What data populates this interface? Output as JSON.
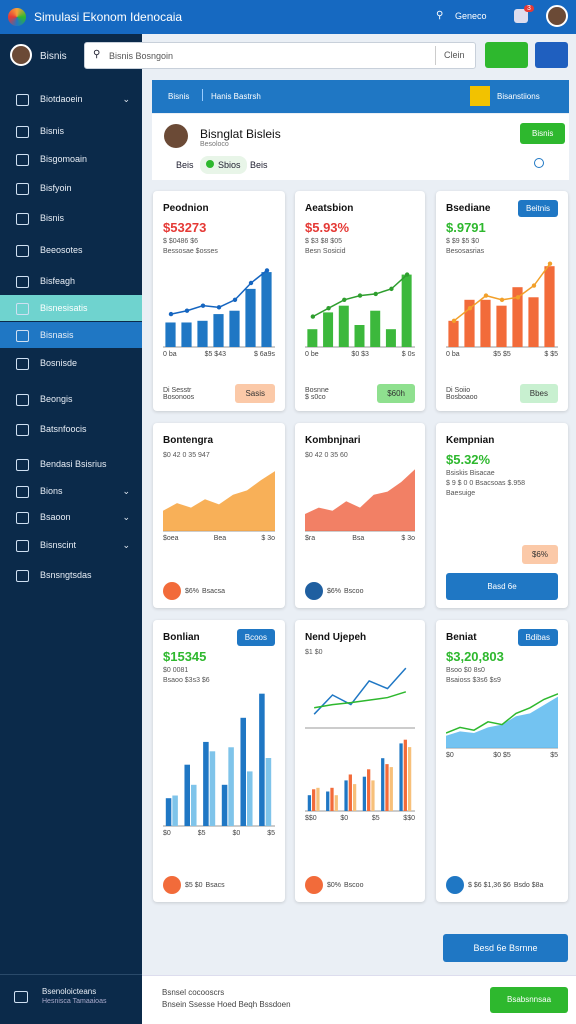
{
  "app": {
    "title": "Simulasi Ekonom Idenocaia",
    "search_label": "Geneco",
    "badge": "3"
  },
  "sidebar": {
    "user": "Bisnis",
    "items": [
      {
        "label": "Biotdaoein",
        "expandable": true
      },
      {
        "label": "Bisnis"
      },
      {
        "label": "Bisgomoain"
      },
      {
        "label": "Bisfyoin"
      },
      {
        "label": "Bisnis"
      },
      {
        "label": "Beeosotes"
      },
      {
        "label": "Bisfeagh"
      },
      {
        "label": "Bisnesisatis"
      },
      {
        "label": "Bisnasis"
      },
      {
        "label": "Bosnisde"
      },
      {
        "label": "Beongis"
      },
      {
        "label": "Batsnfoocis"
      },
      {
        "label": "Bendasi Bsisrius"
      },
      {
        "label": "Bions",
        "expandable": true
      },
      {
        "label": "Bsaoon",
        "expandable": true
      },
      {
        "label": "Bisnscint",
        "expandable": true
      },
      {
        "label": "Bsnsngtsdas"
      }
    ],
    "footer": [
      "Bsenoloicteans",
      "Hesnisca Tamaaioas"
    ]
  },
  "toolbar": {
    "search": "Bisnis Bosngoin",
    "clear": "Clein"
  },
  "banner": {
    "left": "Bisnis",
    "tab": "Hanis Bastrsh",
    "user": "Bisanstiions"
  },
  "profile": {
    "name": "Bisnglat Bisleis",
    "subtitle": "Besoloco",
    "button": "Bisnis",
    "tabs": [
      "Beis",
      "Sbios",
      "Beis"
    ]
  },
  "cards": [
    {
      "title": "Peodnion",
      "value": "$53273",
      "value_color": "#e53935",
      "lines": [
        "$ $0486 $6",
        "Bessosae $osses"
      ],
      "charts": [
        {
          "type": "barline",
          "ylim": [
            0,
            100
          ],
          "series": [
            {
              "kind": "bar",
              "color": "#1f77c4",
              "values": [
                28,
                28,
                30,
                38,
                42,
                68,
                88
              ]
            },
            {
              "kind": "line",
              "color": "#1565c0",
              "values": [
                38,
                42,
                48,
                46,
                55,
                75,
                90
              ]
            }
          ]
        }
      ],
      "xlabels": [
        "0 ba",
        "$5 $43",
        "$ 6a9s"
      ],
      "footer": [
        "Di Sesstr",
        "Bosonoos"
      ],
      "badge": "Sasis",
      "badge_color": "#fbc9a8"
    },
    {
      "title": "Aeatsbion",
      "value": "$5.93%",
      "value_color": "#e53935",
      "lines": [
        "$ $3 $8 $05",
        "Besn Sosicid"
      ],
      "charts": [
        {
          "type": "barline",
          "ylim": [
            0,
            100
          ],
          "series": [
            {
              "kind": "bar",
              "color": "#3cb83c",
              "values": [
                20,
                40,
                48,
                25,
                42,
                20,
                85
              ]
            },
            {
              "kind": "line",
              "color": "#2e9e2e",
              "values": [
                35,
                45,
                55,
                60,
                62,
                68,
                85
              ]
            }
          ]
        }
      ],
      "xlabels": [
        "0 be",
        "$0 $3",
        "$ 0s"
      ],
      "footer": [
        "Bosnne",
        "$ s0co"
      ],
      "badge": "$60h",
      "badge_color": "#8fe08f"
    },
    {
      "title": "Bsediane",
      "button": "Beitnis",
      "value": "$.9791",
      "value_color": "#2eb82e",
      "lines": [
        "$ $9 $5 $0",
        "Besosasrias"
      ],
      "charts": [
        {
          "type": "barline",
          "ylim": [
            0,
            100
          ],
          "series": [
            {
              "kind": "bar",
              "color": "#f26b3a",
              "values": [
                30,
                55,
                55,
                48,
                70,
                58,
                95
              ]
            },
            {
              "kind": "line",
              "color": "#f2a02a",
              "values": [
                30,
                45,
                60,
                55,
                58,
                72,
                98
              ]
            }
          ]
        }
      ],
      "xlabels": [
        "0 ba",
        "$5 $5",
        "$ $5"
      ],
      "footer": [
        "Di Soiio",
        "Bosboaoo"
      ],
      "badge": "Bbes",
      "badge_color": "#c8f0d0"
    },
    {
      "title": "Bontengra",
      "lines": [
        "$0 42 0 35 947"
      ],
      "charts": [
        {
          "type": "area",
          "ylim": [
            0,
            100
          ],
          "series": [
            {
              "kind": "area",
              "color": "#f7a23b",
              "values": [
                30,
                42,
                35,
                48,
                40,
                55,
                62,
                78,
                92
              ]
            }
          ]
        }
      ],
      "xlabels": [
        "$oea",
        "Bea",
        "$ 3o"
      ],
      "footer": [
        "$6%",
        "Bsacsa"
      ],
      "circle_color": "#f26b3a"
    },
    {
      "title": "Kombnjnari",
      "lines": [
        "$0 42 0 35 60"
      ],
      "charts": [
        {
          "type": "area",
          "ylim": [
            0,
            100
          ],
          "series": [
            {
              "kind": "area",
              "color": "#f06a4a",
              "values": [
                25,
                35,
                30,
                45,
                35,
                55,
                60,
                75,
                95
              ]
            }
          ]
        }
      ],
      "xlabels": [
        "$ra",
        "Bsa",
        "$ 3o"
      ],
      "footer": [
        "$6%",
        "Bscoo"
      ],
      "circle_color": "#1f5fa0"
    },
    {
      "title": "Kempnian",
      "value": "$5.32%",
      "value_color": "#2eb82e",
      "lines": [
        "Bsiskis Bisacae",
        "$ 9 $ 0 0 Bsacsoas $.958",
        "Baesuige"
      ],
      "charts": [],
      "xlabels": [],
      "footer": [],
      "badge": "$6%",
      "badge_color": "#fbc9a8",
      "action": "Basd 6e"
    },
    {
      "title": "Bonlian",
      "button": "Bcoos",
      "value": "$15345",
      "value_color": "#2eb82e",
      "lines": [
        "$0 0081",
        "Bsaoo $3s3 $6"
      ],
      "charts": [
        {
          "type": "bar",
          "ylim": [
            0,
            100
          ],
          "series": [
            {
              "kind": "bar",
              "color": "#1f77c4",
              "values": [
                20,
                45,
                62,
                30,
                80,
                98
              ]
            },
            {
              "kind": "bar",
              "color": "#7fc4ea",
              "values": [
                22,
                30,
                55,
                58,
                40,
                50
              ]
            }
          ]
        }
      ],
      "xlabels": [
        "$0",
        "$5",
        "$0",
        "$5"
      ],
      "footer": [
        "$5 $0",
        "Bsacs"
      ],
      "circle_color": "#f26b3a"
    },
    {
      "title": "Nend Ujepeh",
      "lines": [
        "$1 $0"
      ],
      "charts": [
        {
          "type": "line",
          "ylim": [
            0,
            100
          ],
          "series": [
            {
              "kind": "line",
              "color": "#1f77c4",
              "values": [
                20,
                50,
                35,
                72,
                60,
                92
              ]
            },
            {
              "kind": "line",
              "color": "#2eb82e",
              "values": [
                30,
                35,
                38,
                42,
                46,
                55
              ]
            }
          ]
        },
        {
          "type": "bar",
          "ylim": [
            0,
            100
          ],
          "series": [
            {
              "kind": "bar",
              "color": "#1f77c4",
              "values": [
                20,
                25,
                40,
                45,
                70,
                90
              ]
            },
            {
              "kind": "bar",
              "color": "#f26b3a",
              "values": [
                28,
                30,
                48,
                55,
                62,
                95
              ]
            },
            {
              "kind": "bar",
              "color": "#f7c07a",
              "values": [
                30,
                20,
                35,
                40,
                58,
                85
              ]
            }
          ]
        }
      ],
      "xlabels": [
        "$$0",
        "$0",
        "$5",
        "$$0"
      ],
      "footer": [
        "$0%",
        "Bscoo"
      ],
      "circle_color": "#f26b3a"
    },
    {
      "title": "Beniat",
      "button": "Bdibas",
      "value": "$3,20,803",
      "value_color": "#2eb82e",
      "lines": [
        "Bsoo $0 8s0",
        "Bsaioss $3s6 $s9"
      ],
      "charts": [
        {
          "type": "area",
          "ylim": [
            0,
            100
          ],
          "series": [
            {
              "kind": "area",
              "color": "#5bb8ee",
              "values": [
                20,
                28,
                25,
                35,
                40,
                55,
                60,
                75,
                90
              ]
            },
            {
              "kind": "line",
              "color": "#2eb82e",
              "values": [
                25,
                35,
                30,
                45,
                40,
                60,
                70,
                85,
                95
              ]
            }
          ]
        }
      ],
      "xlabels": [
        "$0",
        "$0 $5",
        "$5"
      ],
      "footer": [
        "$ $6 $1,36 $6",
        "Bsdo $8a"
      ],
      "circle_color": "#1f77c4"
    }
  ],
  "cta": "Besd 6e Bsrnne",
  "footer": {
    "lines": [
      "Bsnsel cocooscrs",
      "Bnsein Ssesse Hoed Beqh Bssdoen"
    ],
    "button": "Bsabsnnsaa"
  }
}
